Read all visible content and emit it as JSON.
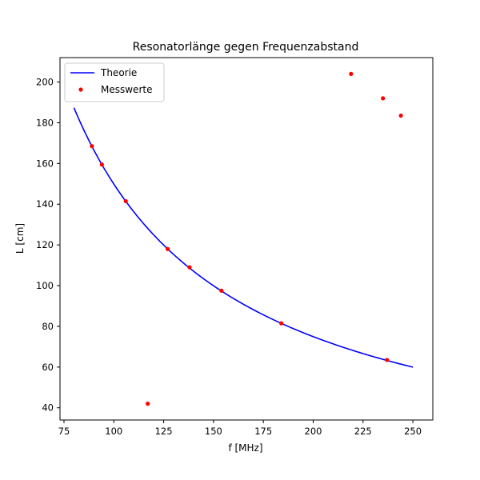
{
  "chart_data": {
    "type": "line",
    "title": "Resonatorlänge gegen Frequenzabstand",
    "xlabel": "f [MHz]",
    "ylabel": "L [cm]",
    "xlim": [
      73,
      260
    ],
    "ylim": [
      34,
      212
    ],
    "xticks": [
      75,
      100,
      125,
      150,
      175,
      200,
      225,
      250
    ],
    "yticks": [
      40,
      60,
      80,
      100,
      120,
      140,
      160,
      180,
      200
    ],
    "grid": false,
    "legend_position": "top-left",
    "series": [
      {
        "name": "Theorie",
        "kind": "line",
        "color": "#0000ff",
        "function": "L = 14990 / f",
        "x_range": [
          80,
          250
        ]
      },
      {
        "name": "Messwerte",
        "kind": "scatter",
        "color": "#ff0000",
        "points": [
          [
            89,
            168.5
          ],
          [
            94,
            159.5
          ],
          [
            106,
            141.5
          ],
          [
            117,
            42
          ],
          [
            127,
            118
          ],
          [
            138,
            109
          ],
          [
            154,
            97.5
          ],
          [
            184,
            81.5
          ],
          [
            219,
            204
          ],
          [
            235,
            192
          ],
          [
            237,
            63.5
          ],
          [
            244,
            183.5
          ]
        ]
      }
    ]
  }
}
